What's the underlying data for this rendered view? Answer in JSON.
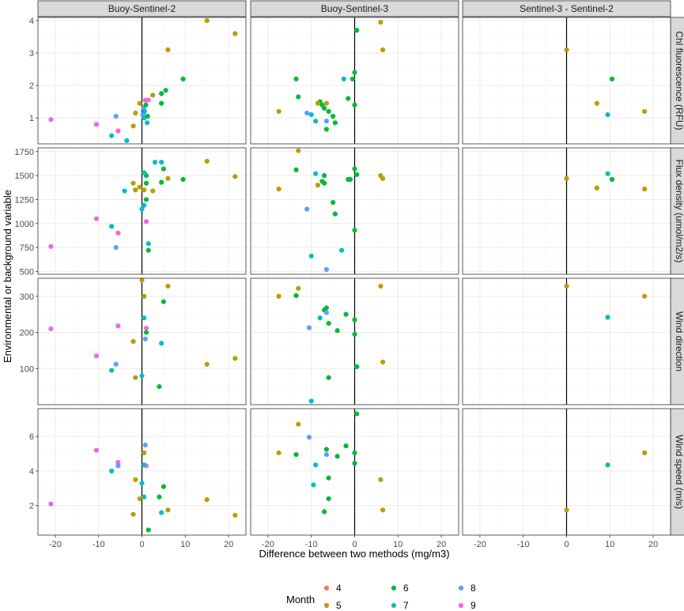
{
  "chart_data": {
    "type": "scatter",
    "xlabel": "Difference between two methods (mg/m3)",
    "ylabel": "Environmental or background variable",
    "columns": [
      "Buoy-Sentinel-2",
      "Buoy-Sentinel-3",
      "Sentinel-3 - Sentinel-2"
    ],
    "rows": [
      {
        "label": "Chl fluorescence (RFU)",
        "ylim": [
          0.2,
          4.1
        ],
        "yticks": [
          1,
          2,
          3,
          4
        ],
        "yminor": [
          1.5,
          2.5,
          3.5
        ]
      },
      {
        "label": "Flux density (umol/m2/s)",
        "ylim": [
          470,
          1790
        ],
        "yticks": [
          500,
          750,
          1000,
          1250,
          1500,
          1750
        ],
        "yminor": [
          625,
          875,
          1125,
          1375,
          1625
        ]
      },
      {
        "label": "Wind direction",
        "ylim": [
          0,
          350
        ],
        "yticks": [
          100,
          200,
          300
        ],
        "yminor": [
          50,
          150,
          250
        ]
      },
      {
        "label": "Wind speed (m/s)",
        "ylim": [
          0.3,
          7.6
        ],
        "yticks": [
          2,
          4,
          6
        ],
        "yminor": [
          3,
          5,
          7
        ]
      }
    ],
    "xlim": [
      -24,
      24
    ],
    "xticks": [
      -20,
      -10,
      0,
      10,
      20
    ],
    "xminor": [
      -15,
      -5,
      5,
      15
    ],
    "legend": {
      "title": "Month",
      "position": "bottom",
      "entries": [
        {
          "label": "4",
          "color": "#F8766D"
        },
        {
          "label": "5",
          "color": "#B79F00"
        },
        {
          "label": "6",
          "color": "#00BA38"
        },
        {
          "label": "7",
          "color": "#00BFC4"
        },
        {
          "label": "8",
          "color": "#619CFF"
        },
        {
          "label": "9",
          "color": "#F564E3"
        }
      ]
    },
    "panels": [
      {
        "row": 0,
        "col": 0,
        "points": [
          [
            -21,
            0.95,
            "9"
          ],
          [
            -10.5,
            0.8,
            "9"
          ],
          [
            -5.5,
            0.6,
            "9"
          ],
          [
            -7,
            0.45,
            "7"
          ],
          [
            -3.5,
            0.3,
            "7"
          ],
          [
            -6,
            1.05,
            "8"
          ],
          [
            -2,
            0.75,
            "5"
          ],
          [
            -1.5,
            1.15,
            "5"
          ],
          [
            -0.5,
            1.45,
            "5"
          ],
          [
            0.2,
            1.1,
            "8"
          ],
          [
            0.4,
            1.3,
            "8"
          ],
          [
            0.6,
            1.2,
            "7"
          ],
          [
            0.5,
            1.0,
            "7"
          ],
          [
            1.2,
            0.85,
            "7"
          ],
          [
            0.8,
            1.55,
            "9"
          ],
          [
            1.5,
            1.55,
            "9"
          ],
          [
            1.3,
            1.05,
            "6"
          ],
          [
            0.9,
            1.4,
            "6"
          ],
          [
            2.5,
            1.7,
            "5"
          ],
          [
            4.5,
            1.45,
            "6"
          ],
          [
            4.5,
            1.75,
            "6"
          ],
          [
            5.5,
            1.85,
            "6"
          ],
          [
            9.5,
            2.2,
            "6"
          ],
          [
            6,
            3.1,
            "5"
          ],
          [
            15,
            4.0,
            "5"
          ],
          [
            21.5,
            3.6,
            "5"
          ]
        ]
      },
      {
        "row": 0,
        "col": 1,
        "points": [
          [
            -17.5,
            1.2,
            "5"
          ],
          [
            -13.5,
            2.2,
            "6"
          ],
          [
            -13,
            1.65,
            "6"
          ],
          [
            -8,
            1.5,
            "6"
          ],
          [
            -7,
            1.3,
            "6"
          ],
          [
            -7.5,
            1.4,
            "6"
          ],
          [
            -6,
            1.2,
            "6"
          ],
          [
            -5,
            1.05,
            "6"
          ],
          [
            -4.5,
            0.85,
            "6"
          ],
          [
            -6.5,
            0.65,
            "6"
          ],
          [
            -9,
            0.9,
            "7"
          ],
          [
            -10,
            1.1,
            "7"
          ],
          [
            -6.5,
            0.9,
            "8"
          ],
          [
            -11,
            1.15,
            "8"
          ],
          [
            -2.5,
            2.2,
            "7"
          ],
          [
            -1.5,
            1.6,
            "6"
          ],
          [
            -0.5,
            2.2,
            "6"
          ],
          [
            0,
            2.4,
            "6"
          ],
          [
            0.5,
            3.7,
            "6"
          ],
          [
            0,
            1.4,
            "6"
          ],
          [
            6,
            3.95,
            "5"
          ],
          [
            6.5,
            3.1,
            "5"
          ],
          [
            -6.5,
            1.45,
            "5"
          ],
          [
            -8.5,
            1.45,
            "5"
          ]
        ]
      },
      {
        "row": 0,
        "col": 2,
        "points": [
          [
            0,
            3.1,
            "5"
          ],
          [
            7,
            1.45,
            "5"
          ],
          [
            10.5,
            2.2,
            "6"
          ],
          [
            9.5,
            1.1,
            "7"
          ],
          [
            18,
            1.2,
            "5"
          ]
        ]
      },
      {
        "row": 1,
        "col": 0,
        "points": [
          [
            -21,
            760,
            "9"
          ],
          [
            -10.5,
            1050,
            "9"
          ],
          [
            -5.5,
            900,
            "9"
          ],
          [
            1,
            1020,
            "9"
          ],
          [
            -7,
            970,
            "7"
          ],
          [
            -6,
            750,
            "8"
          ],
          [
            -4,
            1340,
            "7"
          ],
          [
            -2,
            1420,
            "5"
          ],
          [
            -1.5,
            1350,
            "5"
          ],
          [
            -0.5,
            1380,
            "5"
          ],
          [
            0.5,
            1350,
            "5"
          ],
          [
            0,
            1150,
            "7"
          ],
          [
            0.5,
            1190,
            "7"
          ],
          [
            1,
            1250,
            "6"
          ],
          [
            1,
            1420,
            "6"
          ],
          [
            1,
            1500,
            "6"
          ],
          [
            0.5,
            1530,
            "7"
          ],
          [
            1.5,
            790,
            "7"
          ],
          [
            1.5,
            720,
            "6"
          ],
          [
            2.5,
            1340,
            "5"
          ],
          [
            4.5,
            1640,
            "7"
          ],
          [
            4.5,
            1430,
            "6"
          ],
          [
            5,
            1570,
            "6"
          ],
          [
            6,
            1470,
            "5"
          ],
          [
            9.5,
            1460,
            "6"
          ],
          [
            15,
            1650,
            "5"
          ],
          [
            21.5,
            1490,
            "5"
          ],
          [
            3,
            1640,
            "7"
          ]
        ]
      },
      {
        "row": 1,
        "col": 1,
        "points": [
          [
            -17.5,
            1360,
            "5"
          ],
          [
            -13.5,
            1560,
            "6"
          ],
          [
            -13,
            1760,
            "5"
          ],
          [
            -8.5,
            1400,
            "5"
          ],
          [
            -7.5,
            1440,
            "6"
          ],
          [
            -7,
            1500,
            "6"
          ],
          [
            -7,
            1420,
            "6"
          ],
          [
            -5,
            1220,
            "6"
          ],
          [
            -4.5,
            1100,
            "6"
          ],
          [
            -1.5,
            1460,
            "6"
          ],
          [
            -1,
            1460,
            "6"
          ],
          [
            0,
            1570,
            "6"
          ],
          [
            0.5,
            1510,
            "6"
          ],
          [
            0,
            930,
            "6"
          ],
          [
            -9,
            1520,
            "7"
          ],
          [
            -11,
            1150,
            "8"
          ],
          [
            -3,
            720,
            "7"
          ],
          [
            -10,
            660,
            "7"
          ],
          [
            -6.5,
            520,
            "8"
          ],
          [
            6,
            1500,
            "5"
          ],
          [
            6.5,
            1470,
            "5"
          ]
        ]
      },
      {
        "row": 1,
        "col": 2,
        "points": [
          [
            0,
            1470,
            "5"
          ],
          [
            7,
            1370,
            "5"
          ],
          [
            9.5,
            1520,
            "7"
          ],
          [
            10.5,
            1460,
            "6"
          ],
          [
            18,
            1360,
            "5"
          ]
        ]
      },
      {
        "row": 2,
        "col": 0,
        "points": [
          [
            -21,
            210,
            "9"
          ],
          [
            -10.5,
            135,
            "9"
          ],
          [
            -5.5,
            218,
            "9"
          ],
          [
            1,
            212,
            "9"
          ],
          [
            -7,
            95,
            "7"
          ],
          [
            -6,
            112,
            "8"
          ],
          [
            -2,
            175,
            "5"
          ],
          [
            -1.5,
            75,
            "5"
          ],
          [
            0,
            345,
            "5"
          ],
          [
            0.5,
            300,
            "5"
          ],
          [
            0,
            80,
            "7"
          ],
          [
            0.5,
            240,
            "7"
          ],
          [
            1,
            200,
            "6"
          ],
          [
            0.8,
            182,
            "8"
          ],
          [
            4.5,
            170,
            "7"
          ],
          [
            4,
            50,
            "6"
          ],
          [
            5,
            285,
            "6"
          ],
          [
            6,
            328,
            "5"
          ],
          [
            15,
            112,
            "5"
          ],
          [
            21.5,
            128,
            "5"
          ]
        ]
      },
      {
        "row": 2,
        "col": 1,
        "points": [
          [
            -17.5,
            300,
            "5"
          ],
          [
            -13.5,
            302,
            "6"
          ],
          [
            -13,
            322,
            "5"
          ],
          [
            -8,
            240,
            "7"
          ],
          [
            -7,
            262,
            "6"
          ],
          [
            -6.5,
            268,
            "6"
          ],
          [
            -6.5,
            255,
            "8"
          ],
          [
            -6,
            225,
            "6"
          ],
          [
            -4,
            205,
            "6"
          ],
          [
            -2,
            250,
            "6"
          ],
          [
            0,
            235,
            "6"
          ],
          [
            0,
            195,
            "6"
          ],
          [
            0.5,
            105,
            "6"
          ],
          [
            -6,
            75,
            "6"
          ],
          [
            -10.5,
            213,
            "8"
          ],
          [
            -10,
            10,
            "7"
          ],
          [
            6,
            328,
            "5"
          ],
          [
            6.5,
            118,
            "5"
          ]
        ]
      },
      {
        "row": 2,
        "col": 2,
        "points": [
          [
            0,
            328,
            "5"
          ],
          [
            9.5,
            242,
            "7"
          ],
          [
            18,
            300,
            "5"
          ]
        ]
      },
      {
        "row": 3,
        "col": 0,
        "points": [
          [
            -21,
            2.1,
            "9"
          ],
          [
            -10.5,
            5.2,
            "9"
          ],
          [
            -5.5,
            4.5,
            "9"
          ],
          [
            1,
            4.3,
            "9"
          ],
          [
            -7,
            4.0,
            "7"
          ],
          [
            -5.5,
            4.3,
            "8"
          ],
          [
            -1.5,
            3.5,
            "5"
          ],
          [
            -2,
            1.5,
            "5"
          ],
          [
            0.5,
            5.05,
            "5"
          ],
          [
            0.8,
            5.5,
            "8"
          ],
          [
            0,
            3.3,
            "7"
          ],
          [
            0.5,
            2.5,
            "7"
          ],
          [
            0.5,
            4.35,
            "7"
          ],
          [
            1.5,
            0.6,
            "6"
          ],
          [
            4,
            2.5,
            "6"
          ],
          [
            5,
            3.1,
            "6"
          ],
          [
            4.5,
            1.6,
            "7"
          ],
          [
            6,
            1.75,
            "5"
          ],
          [
            15,
            2.35,
            "5"
          ],
          [
            21.5,
            1.45,
            "5"
          ],
          [
            -0.5,
            2.4,
            "5"
          ]
        ]
      },
      {
        "row": 3,
        "col": 1,
        "points": [
          [
            -17.5,
            5.05,
            "5"
          ],
          [
            -13.5,
            4.95,
            "6"
          ],
          [
            -13,
            6.7,
            "5"
          ],
          [
            -10.5,
            5.95,
            "8"
          ],
          [
            -9,
            4.35,
            "7"
          ],
          [
            -9.5,
            3.2,
            "7"
          ],
          [
            -6.5,
            5.25,
            "6"
          ],
          [
            -6.5,
            4.95,
            "8"
          ],
          [
            -6,
            3.6,
            "6"
          ],
          [
            -6,
            2.4,
            "6"
          ],
          [
            -7,
            1.65,
            "6"
          ],
          [
            -4,
            4.85,
            "6"
          ],
          [
            -2,
            5.45,
            "6"
          ],
          [
            0,
            5.05,
            "6"
          ],
          [
            0,
            4.45,
            "6"
          ],
          [
            0.5,
            7.3,
            "6"
          ],
          [
            6,
            3.5,
            "5"
          ],
          [
            6.5,
            1.75,
            "5"
          ]
        ]
      },
      {
        "row": 3,
        "col": 2,
        "points": [
          [
            0,
            1.75,
            "5"
          ],
          [
            9.5,
            4.35,
            "7"
          ],
          [
            18,
            5.05,
            "5"
          ]
        ]
      }
    ]
  }
}
